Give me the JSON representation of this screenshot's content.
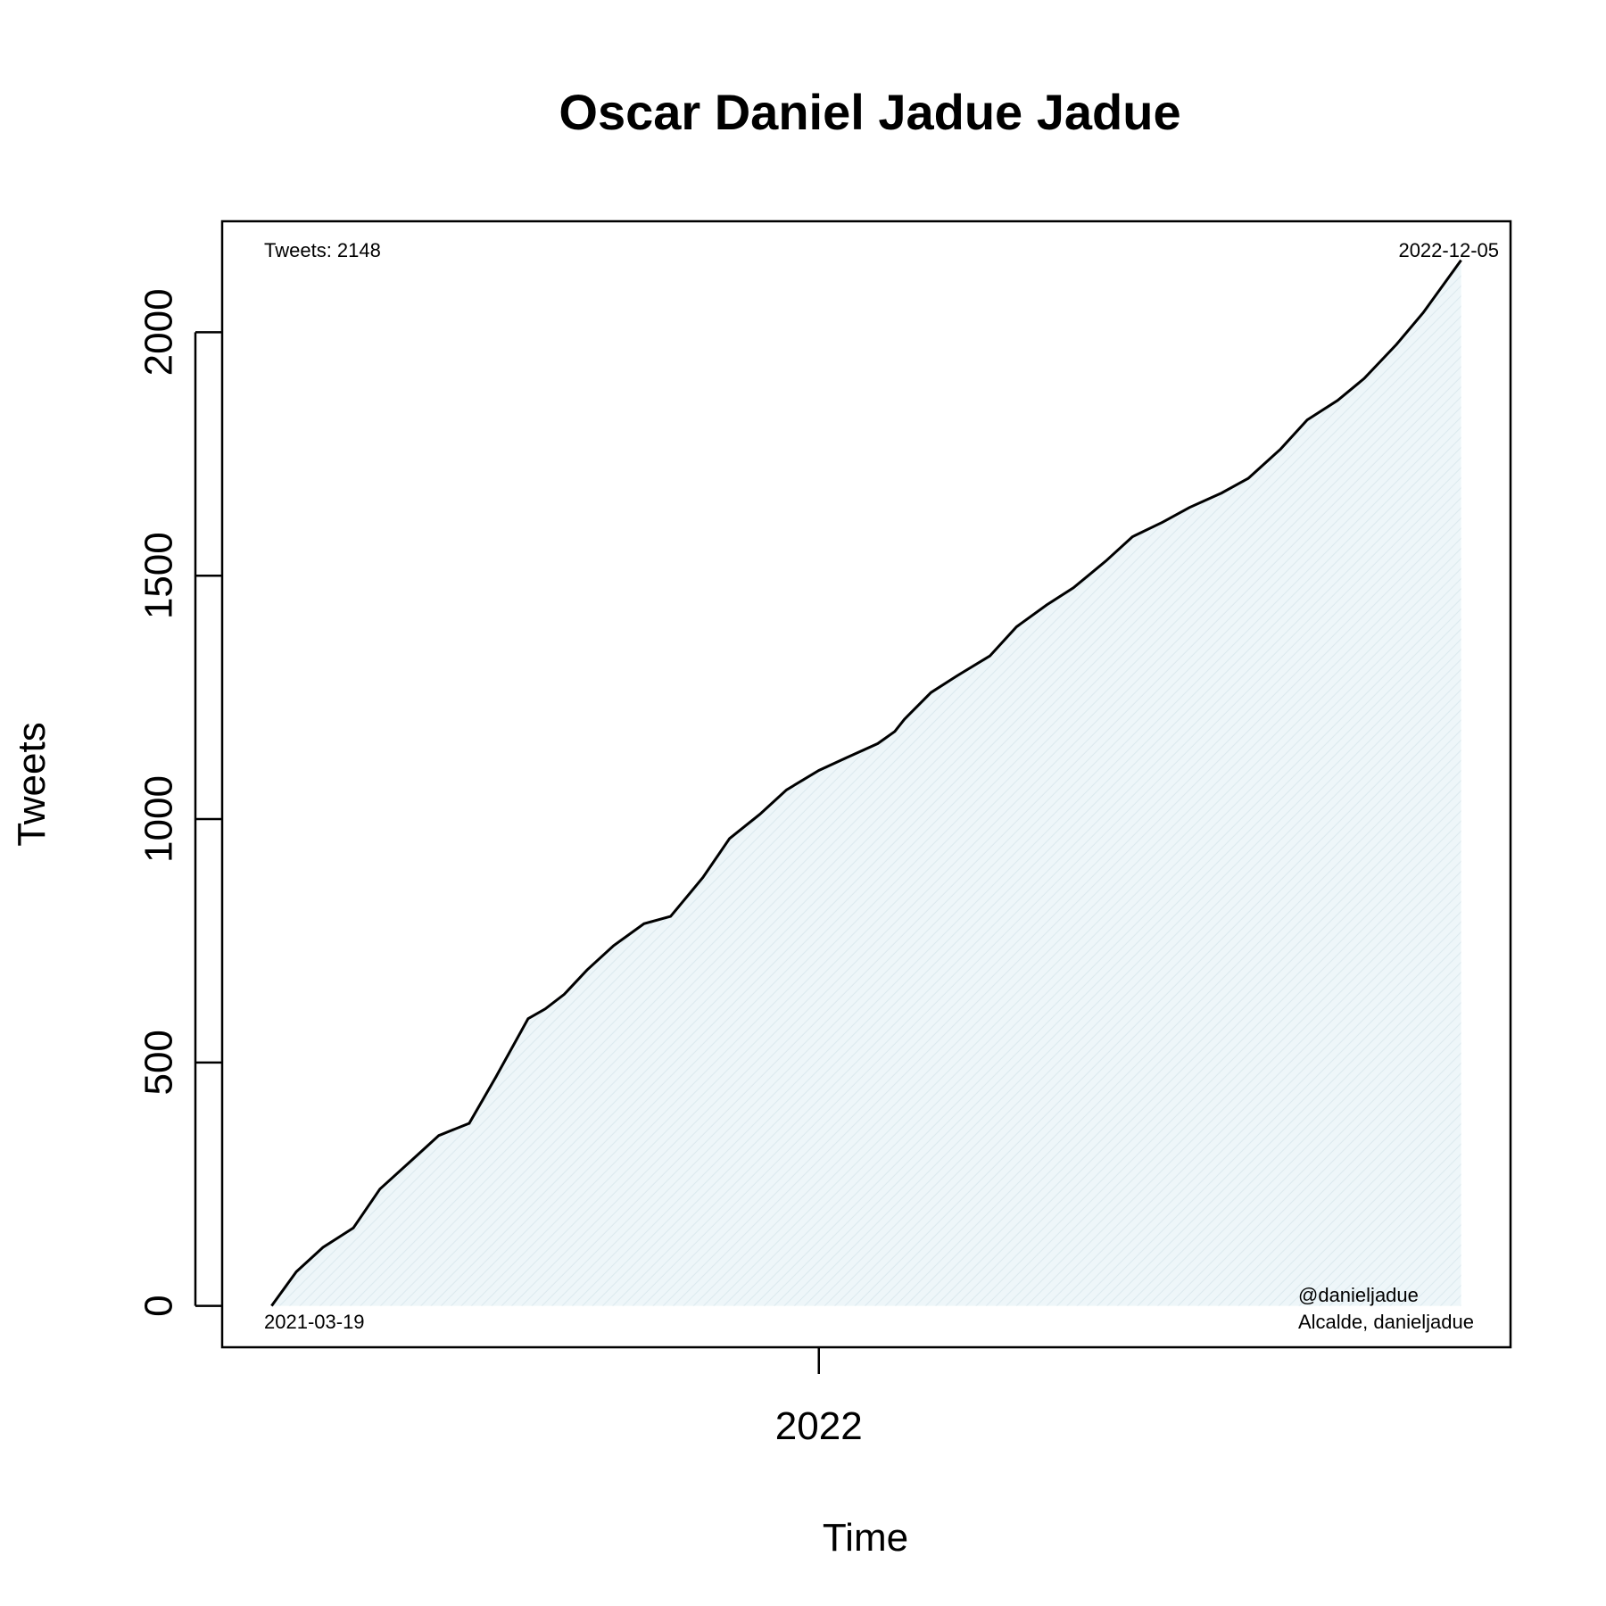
{
  "chart_data": {
    "type": "area",
    "title": "Oscar Daniel Jadue Jadue",
    "xlabel": "Time",
    "ylabel": "Tweets",
    "x_ticks": [
      {
        "label": "2022",
        "date": "2022-01-01"
      }
    ],
    "y_ticks": [
      0,
      500,
      1000,
      1500,
      2000
    ],
    "xlim": [
      "2021-02-21",
      "2022-12-31"
    ],
    "ylim": [
      -85,
      2228
    ],
    "grid": false,
    "fill_color": "#e0eef3",
    "line_color": "#000000",
    "annotations": {
      "top_left": "Tweets: 2148",
      "top_right": "2022-12-05",
      "bottom_left": "2021-03-19",
      "bottom_right_1": "@danieljadue",
      "bottom_right_2": "Alcalde, danieljadue"
    },
    "series": [
      {
        "x": [
          "2021-03-19",
          "2021-04-01",
          "2021-04-15",
          "2021-05-01",
          "2021-05-15",
          "2021-06-01",
          "2021-06-15",
          "2021-07-01",
          "2021-07-15",
          "2021-08-01",
          "2021-08-10",
          "2021-08-20",
          "2021-09-01",
          "2021-09-15",
          "2021-10-01",
          "2021-10-15",
          "2021-11-01",
          "2021-11-15",
          "2021-12-01",
          "2021-12-15",
          "2022-01-01",
          "2022-01-15",
          "2022-02-01",
          "2022-02-10",
          "2022-02-15",
          "2022-03-01",
          "2022-03-15",
          "2022-04-01",
          "2022-04-15",
          "2022-05-01",
          "2022-05-15",
          "2022-06-01",
          "2022-06-15",
          "2022-07-01",
          "2022-07-15",
          "2022-08-01",
          "2022-08-15",
          "2022-09-01",
          "2022-09-15",
          "2022-10-01",
          "2022-10-15",
          "2022-11-01",
          "2022-11-15",
          "2022-12-05"
        ],
        "y": [
          0,
          70,
          120,
          160,
          240,
          300,
          350,
          375,
          470,
          590,
          610,
          640,
          690,
          740,
          785,
          800,
          880,
          960,
          1010,
          1060,
          1100,
          1125,
          1155,
          1180,
          1205,
          1260,
          1295,
          1335,
          1395,
          1440,
          1475,
          1530,
          1580,
          1610,
          1640,
          1670,
          1700,
          1760,
          1820,
          1860,
          1905,
          1975,
          2040,
          2148
        ]
      }
    ]
  }
}
